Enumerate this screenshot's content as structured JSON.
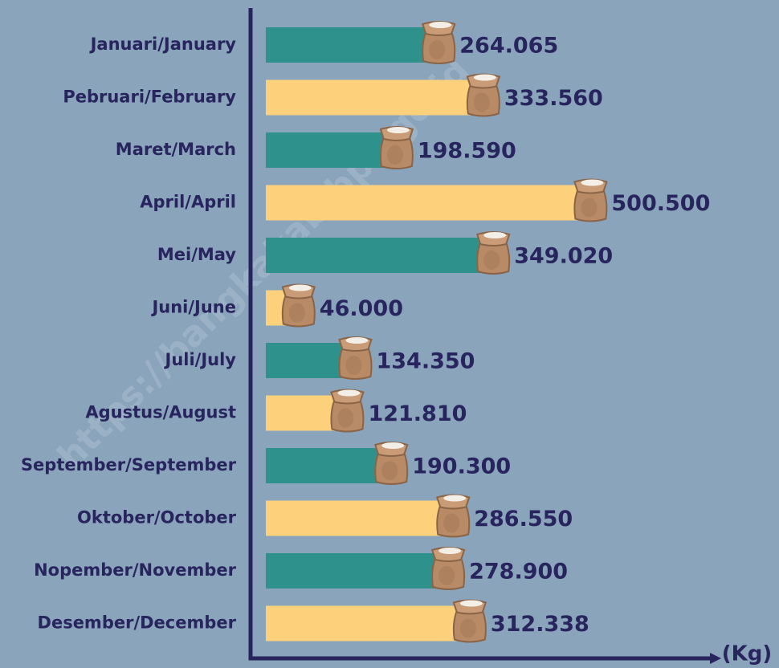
{
  "chart_data": {
    "type": "hbar",
    "categories": [
      "Januari/January",
      "Pebruari/February",
      "Maret/March",
      "April/April",
      "Mei/May",
      "Juni/June",
      "Juli/July",
      "Agustus/August",
      "September/September",
      "Oktober/October",
      "Nopember/November",
      "Desember/December"
    ],
    "values": [
      264065,
      333560,
      198590,
      500500,
      349020,
      46000,
      134350,
      121810,
      190300,
      286550,
      278900,
      312338
    ],
    "value_labels": [
      "264.065",
      "333.560",
      "198.590",
      "500.500",
      "349.020",
      "46.000",
      "134.350",
      "121.810",
      "190.300",
      "286.550",
      "278.900",
      "312.338"
    ],
    "colors": [
      "#2e918c",
      "#fdd17b",
      "#2e918c",
      "#fdd17b",
      "#2e918c",
      "#fdd17b",
      "#2e918c",
      "#fdd17b",
      "#2e918c",
      "#fdd17b",
      "#2e918c",
      "#fdd17b"
    ],
    "xlim": [
      0,
      600000
    ],
    "x_label": "(Kg)",
    "watermark": "https://bangkakab.bps.go.id"
  }
}
